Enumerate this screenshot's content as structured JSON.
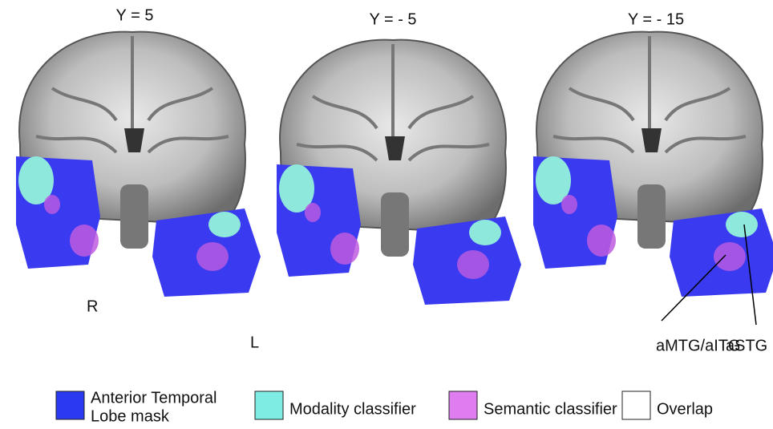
{
  "panels": [
    {
      "label": "Y = 5"
    },
    {
      "label": "Y = - 5"
    },
    {
      "label": "Y = - 15"
    }
  ],
  "orientation": {
    "right": "R",
    "left": "L"
  },
  "annotations": [
    {
      "label": "aMTG/aITG"
    },
    {
      "label": "aSTG"
    }
  ],
  "legend": [
    {
      "lines": [
        "Anterior Temporal",
        "Lobe mask"
      ],
      "color": "#2a3af0"
    },
    {
      "lines": [
        "Modality classifier"
      ],
      "color": "#7fece4"
    },
    {
      "lines": [
        "Semantic classifier"
      ],
      "color": "#de7cf0"
    },
    {
      "lines": [
        "Overlap"
      ],
      "color": "#ffffff"
    }
  ]
}
